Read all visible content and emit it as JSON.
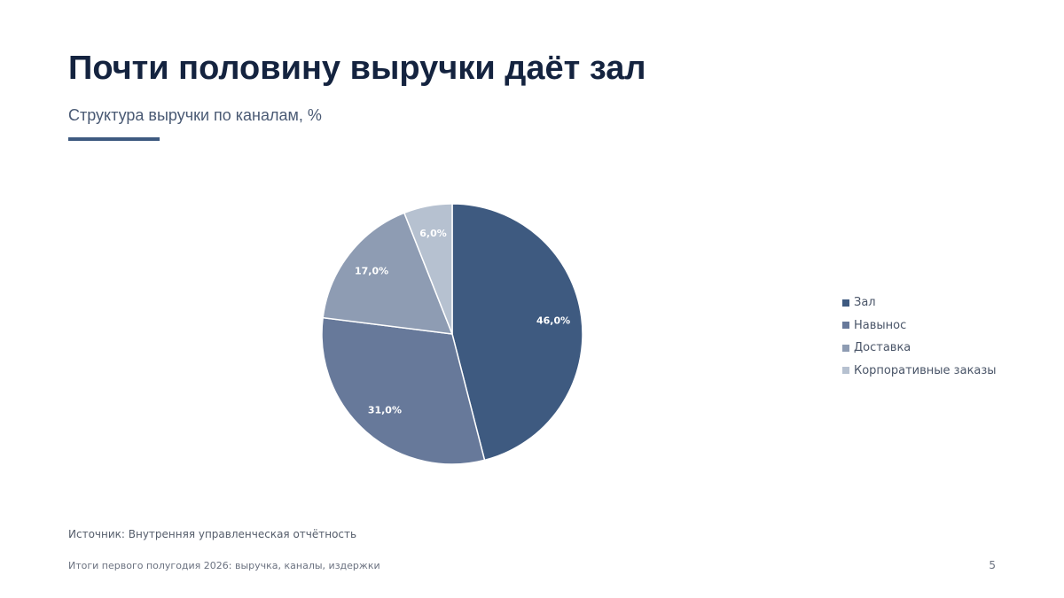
{
  "slide": {
    "title": "Почти половину выручки даёт зал",
    "subtitle": "Структура выручки по каналам, %",
    "source": "Источник: Внутренняя управленческая отчётность",
    "footer": "Итоги первого полугодия 2026: выручка, каналы, издержки",
    "page_number": "5"
  },
  "colors": {
    "title": "#14233f",
    "accent": "#3e5a80",
    "slice_border": "#ffffff"
  },
  "chart_data": {
    "type": "pie",
    "title": "",
    "start_angle_deg": 0,
    "direction": "clockwise",
    "legend_position": "right",
    "categories": [
      "Зал",
      "Навынос",
      "Доставка",
      "Корпоративные заказы"
    ],
    "values": [
      46.0,
      31.0,
      17.0,
      6.0
    ],
    "labels": [
      "46,0%",
      "31,0%",
      "17,0%",
      "6,0%"
    ],
    "colors": [
      "#3e5a80",
      "#67799a",
      "#8e9cb3",
      "#b6c1d0"
    ]
  }
}
